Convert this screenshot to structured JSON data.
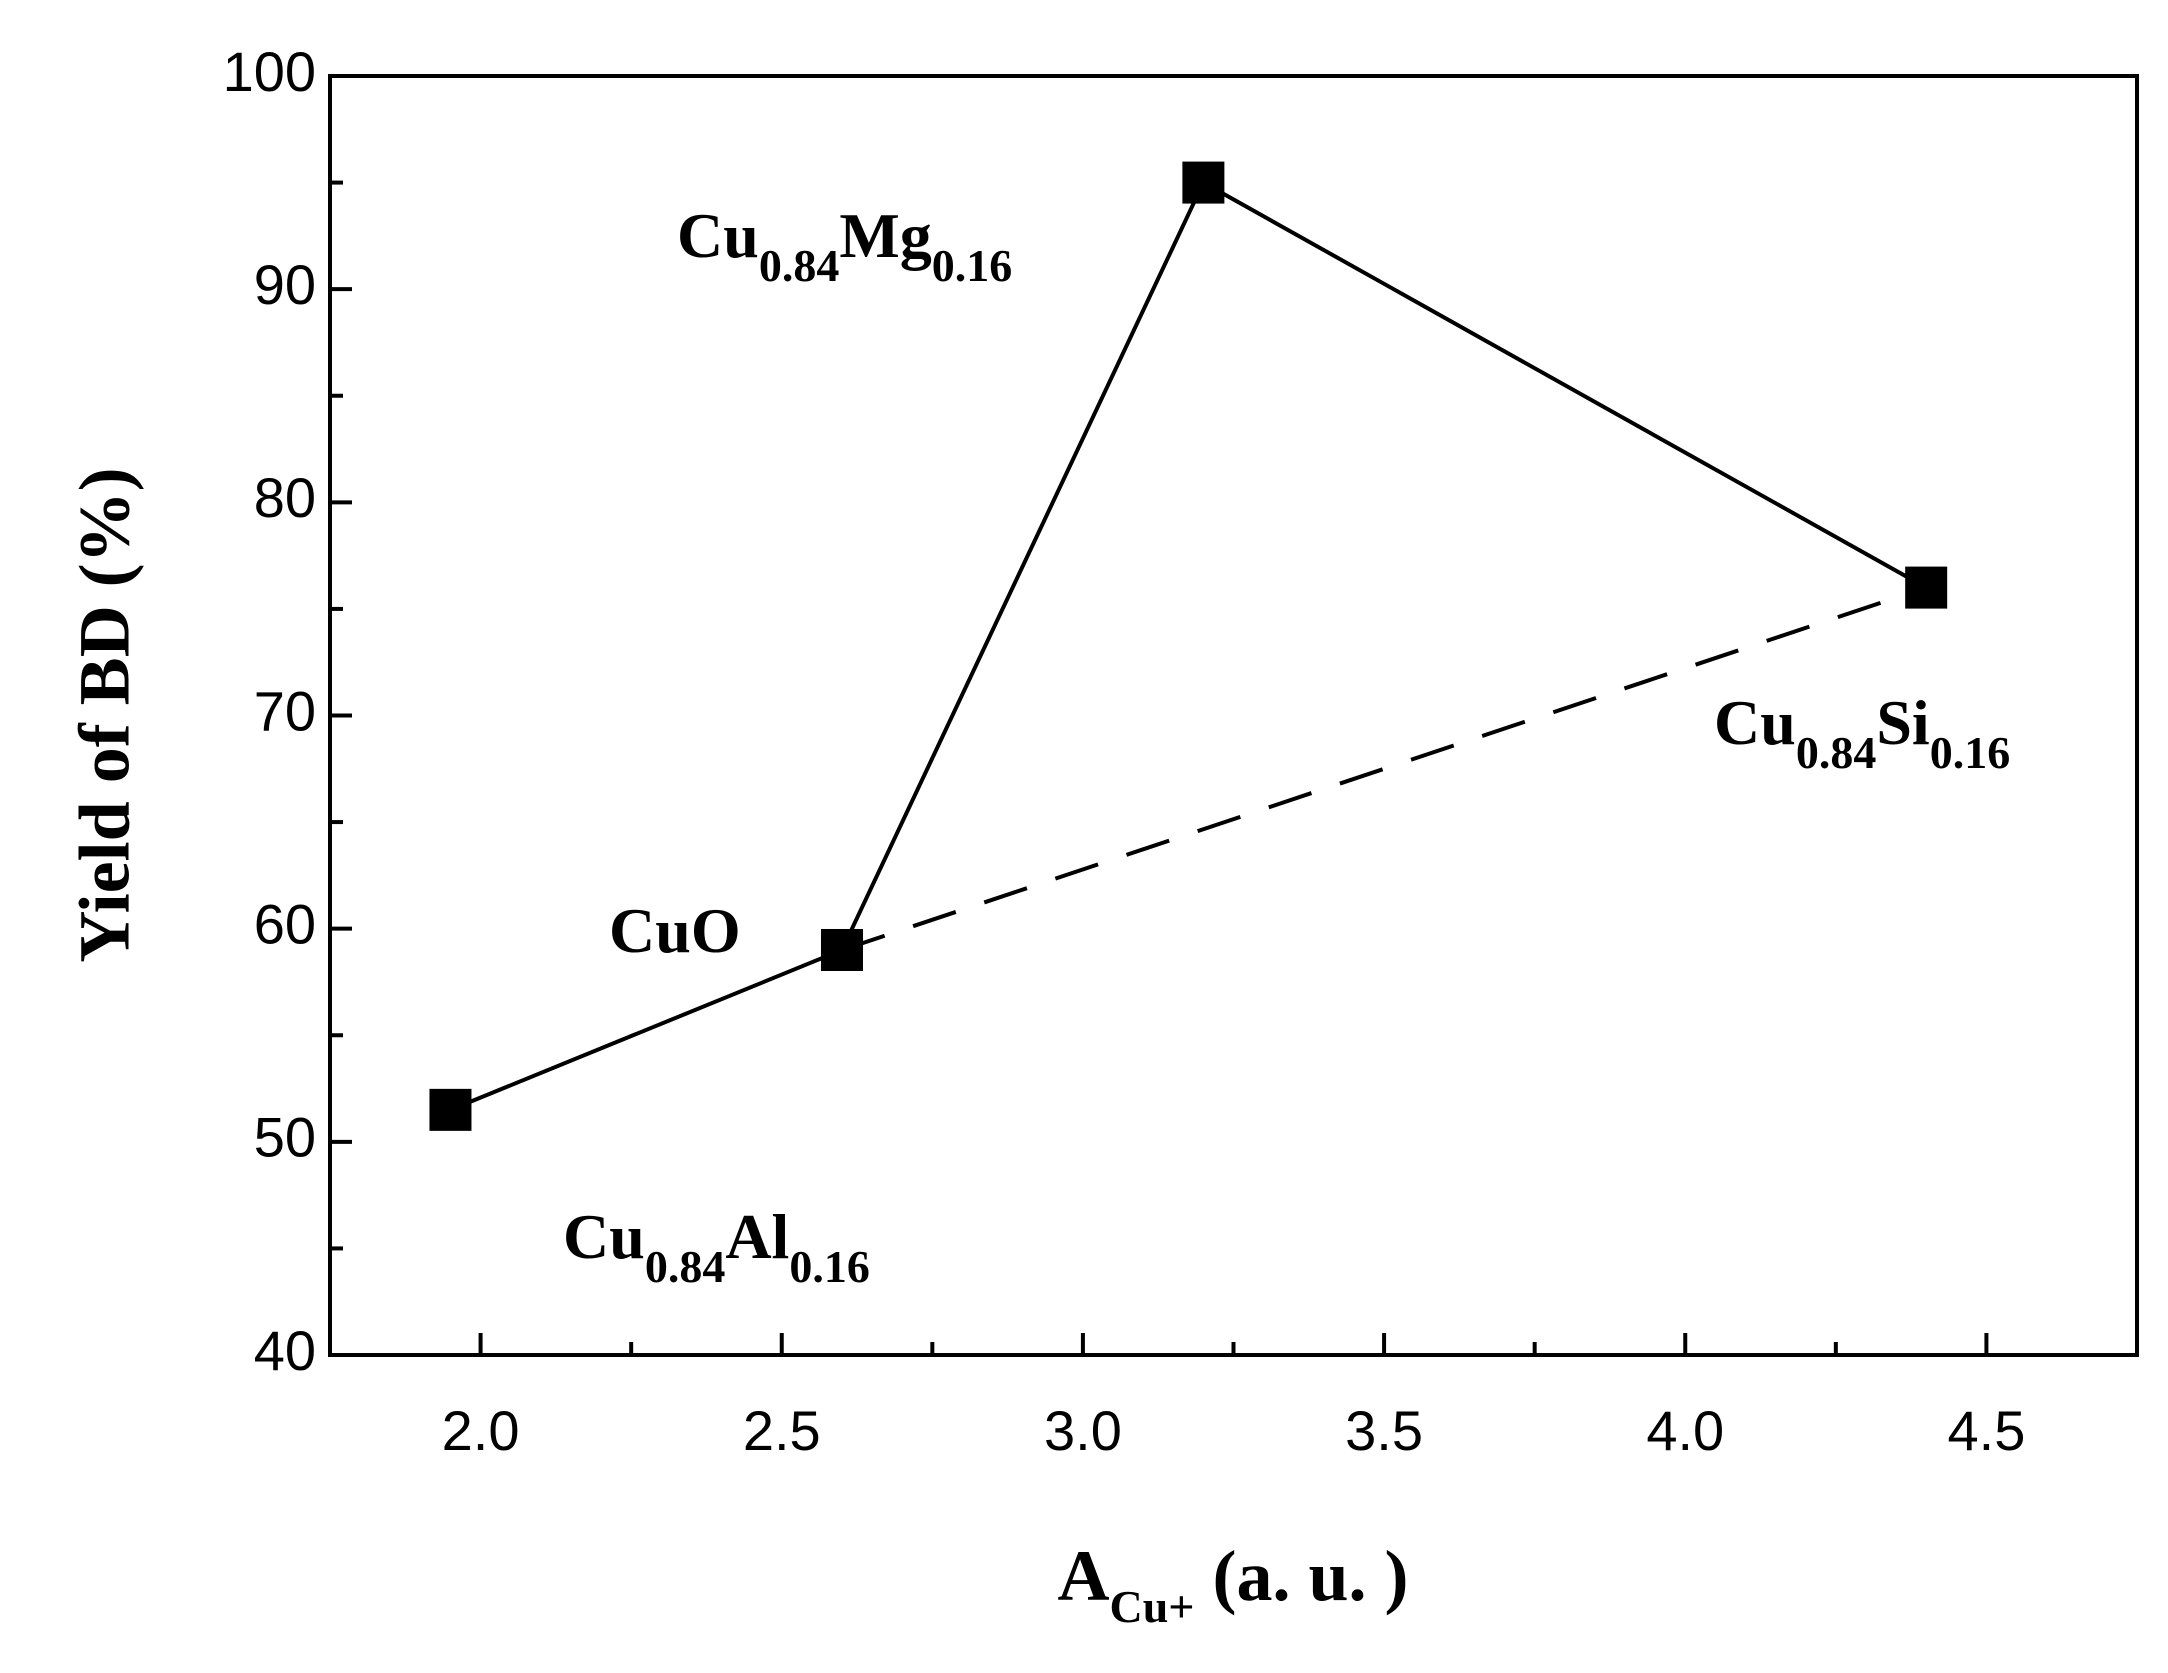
{
  "chart_data": {
    "type": "line",
    "x": [
      1.95,
      2.6,
      3.2,
      4.4
    ],
    "series": [
      {
        "values": [
          51.5,
          59,
          95,
          76
        ],
        "color": "#000000",
        "line_style": "solid",
        "marker": "square"
      },
      {
        "x": [
          2.6,
          4.4
        ],
        "values": [
          59,
          76
        ],
        "color": "#000000",
        "line_style": "dashed"
      }
    ],
    "xlim": [
      1.75,
      4.75
    ],
    "ylim": [
      40,
      100
    ],
    "xticks": [
      {
        "value": 2,
        "label": "2.0"
      },
      {
        "value": 2.5,
        "label": "2.5"
      },
      {
        "value": 3,
        "label": "3.0"
      },
      {
        "value": 3.5,
        "label": "3.5"
      },
      {
        "value": 4,
        "label": "4.0"
      },
      {
        "value": 4.5,
        "label": "4.5"
      }
    ],
    "xminorticks": [
      2.25,
      2.75,
      3.25,
      3.75,
      4.25
    ],
    "yticks": [
      40,
      50,
      60,
      70,
      80,
      90,
      100
    ],
    "yminorticks": [
      45,
      55,
      65,
      75,
      85,
      95
    ],
    "y_label": "Yield of BD (%)",
    "x_label": {
      "main": "A",
      "subscript": "Cu+",
      "rest": "(a. u. )"
    },
    "annotations": [
      "Cu0.84Al0.16",
      "CuO",
      "Cu0.84Mg0.16",
      "Cu0.84Si0.16"
    ],
    "grid": false
  }
}
